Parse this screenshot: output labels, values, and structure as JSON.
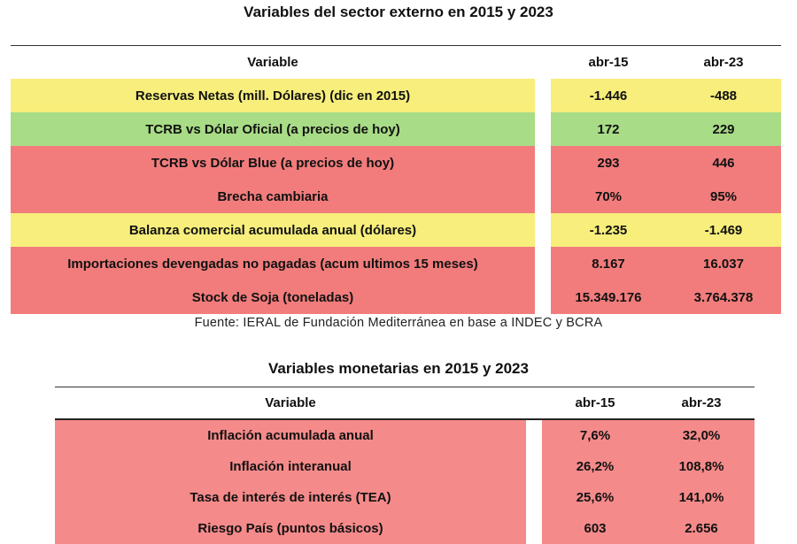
{
  "table1": {
    "title": "Variables del sector externo en 2015 y 2023",
    "headers": [
      "Variable",
      "abr-15",
      "abr-23"
    ],
    "rows": [
      {
        "label": "Reservas Netas (mill. Dólares) (dic en 2015)",
        "v1": "-1.446",
        "v2": "-488",
        "color": "#f7ee7c"
      },
      {
        "label": "TCRB vs Dólar Oficial (a precios de hoy)",
        "v1": "172",
        "v2": "229",
        "color": "#a8dc86"
      },
      {
        "label": "TCRB vs Dólar Blue (a precios de hoy)",
        "v1": "293",
        "v2": "446",
        "color": "#f27c7c"
      },
      {
        "label": "Brecha cambiaria",
        "v1": "70%",
        "v2": "95%",
        "color": "#f27c7c"
      },
      {
        "label": "Balanza comercial acumulada anual (dólares)",
        "v1": "-1.235",
        "v2": "-1.469",
        "color": "#f7ee7c"
      },
      {
        "label": "Importaciones devengadas no pagadas (acum ultimos 15 meses)",
        "v1": "8.167",
        "v2": "16.037",
        "color": "#f27c7c"
      },
      {
        "label": "Stock de Soja (toneladas)",
        "v1": "15.349.176",
        "v2": "3.764.378",
        "color": "#f27c7c"
      }
    ],
    "source": "Fuente: IERAL de Fundación Mediterránea en base a INDEC y BCRA"
  },
  "table2": {
    "title": "Variables monetarias en 2015 y 2023",
    "headers": [
      "Variable",
      "abr-15",
      "abr-23"
    ],
    "rows": [
      {
        "label": "Inflación acumulada anual",
        "v1": "7,6%",
        "v2": "32,0%",
        "color": "#f58a8a"
      },
      {
        "label": "Inflación interanual",
        "v1": "26,2%",
        "v2": "108,8%",
        "color": "#f58a8a"
      },
      {
        "label": "Tasa de interés de interés (TEA)",
        "v1": "25,6%",
        "v2": "141,0%",
        "color": "#f58a8a"
      },
      {
        "label": "Riesgo País (puntos básicos)",
        "v1": "603",
        "v2": "2.656",
        "color": "#f58a8a"
      }
    ]
  }
}
